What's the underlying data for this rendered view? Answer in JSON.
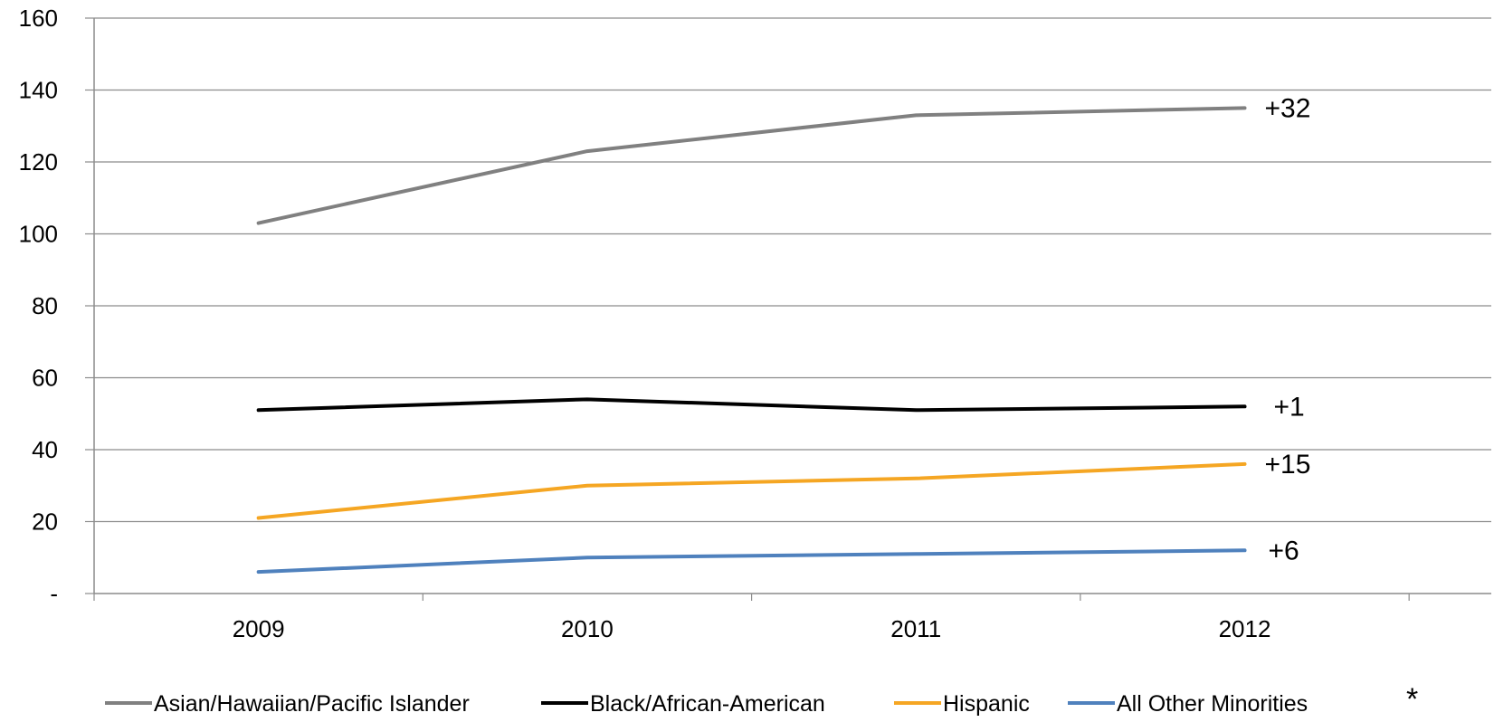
{
  "chart_data": {
    "type": "line",
    "x": [
      "2009",
      "2010",
      "2011",
      "2012"
    ],
    "ylim": [
      0,
      160
    ],
    "y_ticks": [
      0,
      20,
      40,
      60,
      80,
      100,
      120,
      140,
      160
    ],
    "y_tick_labels": [
      "-",
      "20",
      "40",
      "60",
      "80",
      "100",
      "120",
      "140",
      "160"
    ],
    "grid": true,
    "legend_position": "bottom",
    "legend_note": "*",
    "series": [
      {
        "name": "Asian/Hawaiian/Pacific Islander",
        "values": [
          103,
          123,
          133,
          135
        ],
        "color": "#808080",
        "end_label": "+32"
      },
      {
        "name": "Black/African-American",
        "values": [
          51,
          54,
          51,
          52
        ],
        "color": "#000000",
        "end_label": "+1"
      },
      {
        "name": "Hispanic",
        "values": [
          21,
          30,
          32,
          36
        ],
        "color": "#F5A623",
        "end_label": "+15"
      },
      {
        "name": "All Other Minorities",
        "values": [
          6,
          10,
          11,
          12
        ],
        "color": "#4F81BD",
        "end_label": "+6"
      }
    ]
  }
}
